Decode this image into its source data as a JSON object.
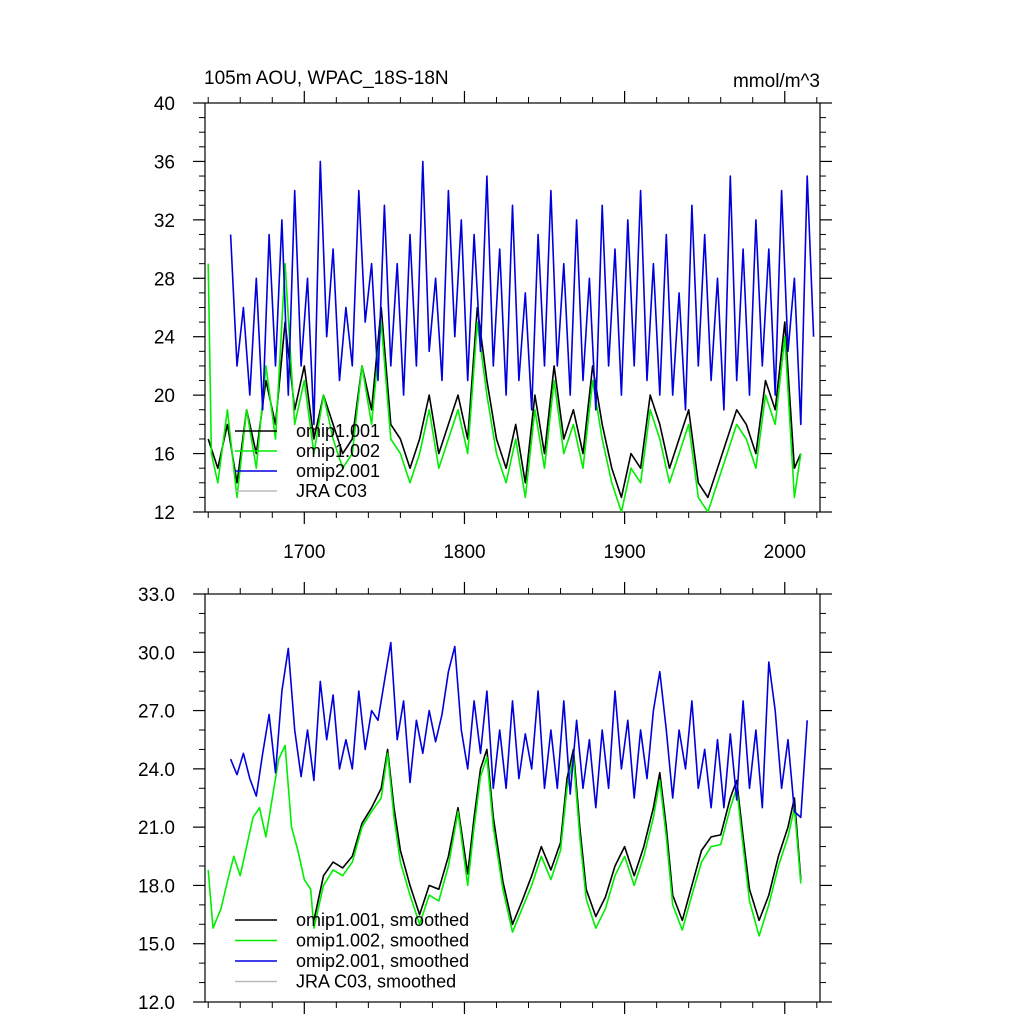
{
  "figure": {
    "title": "105m AOU, WPAC_18S-18N",
    "units": "mmol/m^3"
  },
  "chart_data": [
    {
      "type": "line",
      "title": "105m AOU, WPAC_18S-18N",
      "units": "mmol/m^3",
      "xlabel": "",
      "ylabel": "",
      "xlim": [
        1638,
        2022
      ],
      "ylim": [
        12,
        40
      ],
      "xticks": [
        1700,
        1800,
        1900,
        2000
      ],
      "yticks": [
        12,
        16,
        20,
        24,
        28,
        32,
        36,
        40
      ],
      "ytick_labels": [
        "12",
        "16",
        "20",
        "24",
        "28",
        "32",
        "36",
        "40"
      ],
      "xtick_labels": [
        "1700",
        "1800",
        "1900",
        "2000"
      ],
      "legend_position": "bottom-left",
      "grid": false,
      "series": [
        {
          "name": "omip1.001",
          "color": "#000000",
          "x": [
            1640,
            1646,
            1652,
            1658,
            1664,
            1670,
            1676,
            1682,
            1688,
            1694,
            1700,
            1706,
            1712,
            1718,
            1724,
            1730,
            1736,
            1742,
            1748,
            1754,
            1760,
            1766,
            1772,
            1778,
            1784,
            1790,
            1796,
            1802,
            1808,
            1814,
            1820,
            1826,
            1832,
            1838,
            1844,
            1850,
            1856,
            1862,
            1868,
            1874,
            1880,
            1886,
            1892,
            1898,
            1904,
            1910,
            1916,
            1922,
            1928,
            1934,
            1940,
            1946,
            1952,
            1958,
            1964,
            1970,
            1976,
            1982,
            1988,
            1994,
            2000,
            2006,
            2010
          ],
          "y": [
            17,
            15,
            18,
            14,
            19,
            16,
            21,
            18,
            25,
            19,
            22,
            17,
            20,
            18,
            16,
            17,
            22,
            19,
            26,
            18,
            17,
            15,
            17,
            20,
            16,
            18,
            20,
            17,
            26,
            21,
            17,
            15,
            18,
            14,
            20,
            16,
            22,
            17,
            19,
            16,
            22,
            18,
            15,
            13,
            16,
            15,
            20,
            18,
            15,
            17,
            19,
            14,
            13,
            15,
            17,
            19,
            18,
            16,
            21,
            19,
            25,
            15,
            16
          ]
        },
        {
          "name": "omip1.002",
          "color": "#00ee00",
          "x": [
            1640,
            1642,
            1646,
            1652,
            1658,
            1664,
            1670,
            1676,
            1682,
            1688,
            1694,
            1700,
            1706,
            1712,
            1718,
            1724,
            1730,
            1736,
            1742,
            1748,
            1754,
            1760,
            1766,
            1772,
            1778,
            1784,
            1790,
            1796,
            1802,
            1808,
            1814,
            1820,
            1826,
            1832,
            1838,
            1844,
            1850,
            1856,
            1862,
            1868,
            1874,
            1880,
            1886,
            1892,
            1898,
            1904,
            1910,
            1916,
            1922,
            1928,
            1934,
            1940,
            1946,
            1952,
            1958,
            1964,
            1970,
            1976,
            1982,
            1988,
            1994,
            2000,
            2006,
            2010
          ],
          "y": [
            29,
            16,
            14,
            19,
            13,
            19,
            15,
            22,
            17,
            29,
            18,
            21,
            16,
            20,
            17,
            15,
            16,
            22,
            18,
            25,
            17,
            16,
            14,
            16,
            19,
            15,
            17,
            19,
            16,
            25,
            20,
            16,
            14,
            17,
            13,
            19,
            15,
            21,
            16,
            18,
            15,
            21,
            17,
            14,
            12,
            15,
            14,
            19,
            17,
            14,
            16,
            18,
            13,
            12,
            14,
            16,
            18,
            17,
            15,
            20,
            18,
            24,
            13,
            16
          ]
        },
        {
          "name": "omip2.001",
          "color": "#0000dd",
          "x": [
            1654,
            1658,
            1662,
            1666,
            1670,
            1674,
            1678,
            1682,
            1686,
            1690,
            1694,
            1698,
            1702,
            1706,
            1710,
            1714,
            1718,
            1722,
            1726,
            1730,
            1734,
            1738,
            1742,
            1746,
            1750,
            1754,
            1758,
            1762,
            1766,
            1770,
            1774,
            1778,
            1782,
            1786,
            1790,
            1794,
            1798,
            1802,
            1806,
            1810,
            1814,
            1818,
            1822,
            1826,
            1830,
            1834,
            1838,
            1842,
            1846,
            1850,
            1854,
            1858,
            1862,
            1866,
            1870,
            1874,
            1878,
            1882,
            1886,
            1890,
            1894,
            1898,
            1902,
            1906,
            1910,
            1914,
            1918,
            1922,
            1926,
            1930,
            1934,
            1938,
            1942,
            1946,
            1950,
            1954,
            1958,
            1962,
            1966,
            1970,
            1974,
            1978,
            1982,
            1986,
            1990,
            1994,
            1998,
            2002,
            2006,
            2010,
            2014,
            2018
          ],
          "y": [
            31,
            22,
            26,
            20,
            28,
            19,
            31,
            22,
            32,
            20,
            34,
            22,
            28,
            18,
            36,
            24,
            30,
            21,
            26,
            22,
            34,
            25,
            29,
            21,
            33,
            22,
            29,
            20,
            31,
            22,
            36,
            23,
            28,
            21,
            34,
            24,
            32,
            21,
            31,
            23,
            35,
            22,
            30,
            20,
            33,
            21,
            27,
            19,
            31,
            22,
            34,
            22,
            29,
            20,
            32,
            21,
            28,
            19,
            33,
            22,
            30,
            20,
            32,
            22,
            34,
            21,
            29,
            20,
            31,
            20,
            27,
            19,
            33,
            22,
            31,
            21,
            28,
            19,
            35,
            21,
            30,
            20,
            32,
            22,
            30,
            20,
            34,
            23,
            28,
            18,
            35,
            24
          ]
        },
        {
          "name": "JRA C03",
          "color": "#bbbbbb",
          "x": [],
          "y": []
        }
      ]
    },
    {
      "type": "line",
      "title": "",
      "xlabel": "",
      "ylabel": "",
      "xlim": [
        1638,
        2022
      ],
      "ylim": [
        12,
        33
      ],
      "xticks": [
        1700,
        1800,
        1900,
        2000
      ],
      "yticks": [
        12,
        15,
        18,
        21,
        24,
        27,
        30,
        33
      ],
      "ytick_labels": [
        "12.0",
        "15.0",
        "18.0",
        "21.0",
        "24.0",
        "27.0",
        "30.0",
        "33.0"
      ],
      "legend_position": "bottom-left",
      "grid": false,
      "series": [
        {
          "name": "omip1.001, smoothed",
          "color": "#000000",
          "x": [
            1706,
            1712,
            1718,
            1724,
            1730,
            1736,
            1742,
            1748,
            1752,
            1756,
            1760,
            1766,
            1772,
            1778,
            1784,
            1790,
            1796,
            1802,
            1806,
            1810,
            1814,
            1818,
            1824,
            1830,
            1836,
            1842,
            1848,
            1854,
            1860,
            1864,
            1868,
            1872,
            1876,
            1882,
            1888,
            1894,
            1900,
            1906,
            1912,
            1918,
            1922,
            1926,
            1930,
            1936,
            1942,
            1948,
            1954,
            1960,
            1966,
            1970,
            1974,
            1978,
            1984,
            1990,
            1996,
            2002,
            2006,
            2010
          ],
          "y": [
            16.2,
            18.5,
            19.2,
            18.9,
            19.5,
            21.2,
            22.0,
            23.0,
            25.0,
            22.0,
            19.8,
            18.0,
            16.5,
            18.0,
            17.8,
            19.5,
            22.0,
            18.6,
            21.5,
            24.0,
            25.0,
            21.5,
            18.2,
            16.0,
            17.2,
            18.5,
            20.0,
            18.8,
            20.2,
            23.5,
            25.0,
            21.0,
            17.8,
            16.4,
            17.4,
            19.0,
            20.0,
            18.5,
            20.0,
            22.0,
            23.8,
            21.0,
            17.5,
            16.2,
            18.0,
            19.8,
            20.5,
            20.6,
            22.5,
            23.4,
            20.5,
            17.8,
            16.2,
            17.5,
            19.5,
            21.0,
            22.5,
            18.3
          ]
        },
        {
          "name": "omip1.002, smoothed",
          "color": "#00ee00",
          "x": [
            1640,
            1643,
            1648,
            1652,
            1656,
            1660,
            1664,
            1668,
            1672,
            1676,
            1680,
            1684,
            1688,
            1692,
            1696,
            1700,
            1704,
            1706,
            1712,
            1718,
            1724,
            1730,
            1736,
            1742,
            1748,
            1752,
            1756,
            1760,
            1766,
            1772,
            1778,
            1784,
            1790,
            1796,
            1802,
            1806,
            1810,
            1814,
            1818,
            1824,
            1830,
            1836,
            1842,
            1848,
            1854,
            1860,
            1864,
            1868,
            1872,
            1876,
            1882,
            1888,
            1894,
            1900,
            1906,
            1912,
            1918,
            1922,
            1926,
            1930,
            1936,
            1942,
            1948,
            1954,
            1960,
            1966,
            1970,
            1974,
            1978,
            1984,
            1990,
            1996,
            2002,
            2006,
            2010
          ],
          "y": [
            18.8,
            15.8,
            16.8,
            18.2,
            19.5,
            18.5,
            20.0,
            21.5,
            22.0,
            20.5,
            22.5,
            24.5,
            25.2,
            21.0,
            19.8,
            18.3,
            17.8,
            15.8,
            18.0,
            18.8,
            18.5,
            19.2,
            21.0,
            21.8,
            22.5,
            24.8,
            21.5,
            19.2,
            17.5,
            16.0,
            17.5,
            17.2,
            19.0,
            21.8,
            18.0,
            21.0,
            23.6,
            24.6,
            21.0,
            17.8,
            15.6,
            16.8,
            18.0,
            19.5,
            18.3,
            19.8,
            23.0,
            24.6,
            20.5,
            17.3,
            15.8,
            16.8,
            18.5,
            19.5,
            18.0,
            19.5,
            21.5,
            23.4,
            20.5,
            17.0,
            15.7,
            17.5,
            19.2,
            20.0,
            20.1,
            22.0,
            23.0,
            20.0,
            17.2,
            15.4,
            17.0,
            19.0,
            20.5,
            22.0,
            18.1
          ]
        },
        {
          "name": "omip2.001, smoothed",
          "color": "#0000dd",
          "x": [
            1654,
            1658,
            1662,
            1666,
            1670,
            1674,
            1678,
            1682,
            1686,
            1690,
            1694,
            1698,
            1702,
            1706,
            1710,
            1714,
            1718,
            1722,
            1726,
            1730,
            1734,
            1738,
            1742,
            1746,
            1750,
            1754,
            1758,
            1762,
            1766,
            1770,
            1774,
            1778,
            1782,
            1786,
            1790,
            1794,
            1798,
            1802,
            1806,
            1810,
            1814,
            1818,
            1822,
            1826,
            1830,
            1834,
            1838,
            1842,
            1846,
            1850,
            1854,
            1858,
            1862,
            1866,
            1870,
            1874,
            1878,
            1882,
            1886,
            1890,
            1894,
            1898,
            1902,
            1906,
            1910,
            1914,
            1918,
            1922,
            1926,
            1930,
            1934,
            1938,
            1942,
            1946,
            1950,
            1954,
            1958,
            1962,
            1966,
            1970,
            1974,
            1978,
            1982,
            1986,
            1990,
            1994,
            1998,
            2002,
            2006,
            2010,
            2014
          ],
          "y": [
            24.5,
            23.7,
            24.8,
            23.5,
            22.6,
            24.8,
            26.8,
            23.8,
            28.0,
            30.2,
            26.0,
            23.6,
            26.0,
            23.4,
            28.5,
            25.5,
            27.8,
            24.0,
            25.5,
            24.0,
            28.0,
            25.0,
            27.0,
            26.5,
            28.5,
            30.5,
            25.5,
            27.5,
            23.3,
            26.5,
            24.8,
            27.0,
            25.4,
            26.8,
            29.0,
            30.3,
            26.0,
            24.0,
            27.5,
            24.8,
            28.0,
            23.0,
            26.0,
            23.0,
            27.5,
            23.5,
            25.8,
            24.0,
            28.0,
            23.0,
            26.0,
            23.0,
            27.5,
            22.7,
            26.5,
            23.0,
            25.5,
            22.0,
            26.0,
            23.0,
            28.0,
            24.0,
            26.5,
            22.5,
            26.0,
            23.5,
            27.0,
            29.0,
            26.0,
            22.5,
            26.0,
            24.0,
            27.5,
            23.0,
            25.0,
            22.0,
            25.5,
            22.0,
            25.8,
            22.4,
            27.5,
            23.0,
            26.0,
            22.0,
            29.5,
            27.0,
            23.0,
            25.5,
            21.8,
            21.5,
            26.5
          ]
        },
        {
          "name": "JRA C03, smoothed",
          "color": "#bbbbbb",
          "x": [],
          "y": []
        }
      ]
    }
  ]
}
